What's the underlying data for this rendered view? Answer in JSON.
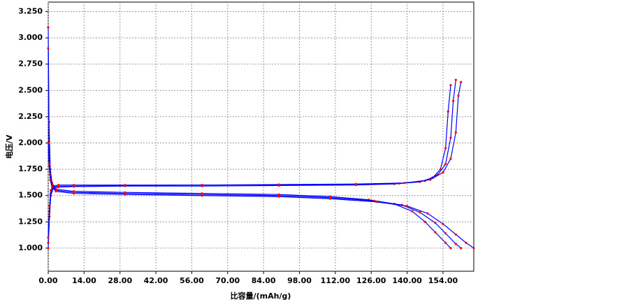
{
  "chart_data": {
    "type": "line",
    "x_label": "比容量/(mAh/g)",
    "y_label": "电压/V",
    "xlim": [
      0,
      166
    ],
    "ylim": [
      0.78,
      3.34
    ],
    "xticks": [
      {
        "value": 0,
        "label": "0.00"
      },
      {
        "value": 14,
        "label": "14.00"
      },
      {
        "value": 28,
        "label": "28.00"
      },
      {
        "value": 42,
        "label": "42.00"
      },
      {
        "value": 56,
        "label": "56.00"
      },
      {
        "value": 70,
        "label": "70.00"
      },
      {
        "value": 84,
        "label": "84.00"
      },
      {
        "value": 98,
        "label": "98.00"
      },
      {
        "value": 112,
        "label": "112.00"
      },
      {
        "value": 126,
        "label": "126.00"
      },
      {
        "value": 140,
        "label": "140.00"
      },
      {
        "value": 154,
        "label": "154.00"
      }
    ],
    "yticks": [
      {
        "value": 1,
        "label": "1.000"
      },
      {
        "value": 1.25,
        "label": "1.250"
      },
      {
        "value": 1.5,
        "label": "1.500"
      },
      {
        "value": 1.75,
        "label": "1.750"
      },
      {
        "value": 2,
        "label": "2.000"
      },
      {
        "value": 2.25,
        "label": "2.250"
      },
      {
        "value": 2.5,
        "label": "2.500"
      },
      {
        "value": 2.75,
        "label": "2.750"
      },
      {
        "value": 3,
        "label": "3.000"
      },
      {
        "value": 3.25,
        "label": "3.250"
      }
    ],
    "grid": true,
    "line_color": "#0000ff",
    "marker_color": "#ff0000",
    "series": [
      {
        "x": [
          0,
          0.5,
          1,
          2,
          4,
          10,
          30,
          60,
          90,
          120,
          135,
          145,
          150,
          153,
          155,
          156,
          157
        ],
        "values": [
          1.0,
          1.3,
          1.5,
          1.57,
          1.58,
          1.585,
          1.59,
          1.59,
          1.595,
          1.6,
          1.61,
          1.63,
          1.67,
          1.75,
          1.95,
          2.3,
          2.55
        ]
      },
      {
        "x": [
          0,
          0.5,
          1,
          2,
          4,
          10,
          30,
          60,
          90,
          120,
          137,
          147,
          152,
          155,
          157,
          158,
          159
        ],
        "values": [
          1.05,
          1.35,
          1.52,
          1.58,
          1.59,
          1.59,
          1.595,
          1.6,
          1.6,
          1.605,
          1.615,
          1.64,
          1.7,
          1.8,
          2.05,
          2.4,
          2.6
        ]
      },
      {
        "x": [
          0,
          0.5,
          1,
          2,
          4,
          10,
          30,
          60,
          90,
          120,
          139,
          149,
          154,
          157,
          159,
          160,
          161
        ],
        "values": [
          1.1,
          1.4,
          1.55,
          1.59,
          1.6,
          1.6,
          1.6,
          1.6,
          1.605,
          1.61,
          1.62,
          1.65,
          1.72,
          1.85,
          2.1,
          2.45,
          2.58
        ]
      },
      {
        "x": [
          0,
          0.3,
          0.8,
          1.5,
          3,
          10,
          30,
          60,
          90,
          110,
          125,
          135,
          142,
          147,
          151,
          155,
          157
        ],
        "values": [
          3.1,
          2.2,
          1.75,
          1.62,
          1.56,
          1.54,
          1.53,
          1.52,
          1.51,
          1.49,
          1.46,
          1.42,
          1.35,
          1.25,
          1.15,
          1.05,
          1.0
        ]
      },
      {
        "x": [
          0,
          0.3,
          0.8,
          1.5,
          3,
          10,
          30,
          60,
          90,
          110,
          127,
          138,
          145,
          151,
          155,
          159,
          161
        ],
        "values": [
          2.9,
          2.0,
          1.7,
          1.6,
          1.55,
          1.53,
          1.52,
          1.51,
          1.5,
          1.48,
          1.45,
          1.41,
          1.34,
          1.24,
          1.14,
          1.04,
          1.0
        ]
      },
      {
        "x": [
          0,
          0.3,
          0.8,
          1.5,
          3,
          10,
          30,
          60,
          90,
          110,
          128,
          140,
          148,
          154,
          159,
          163,
          166
        ],
        "values": [
          2.0,
          1.8,
          1.65,
          1.58,
          1.54,
          1.52,
          1.51,
          1.5,
          1.49,
          1.47,
          1.44,
          1.4,
          1.33,
          1.23,
          1.13,
          1.05,
          1.0
        ]
      }
    ]
  }
}
